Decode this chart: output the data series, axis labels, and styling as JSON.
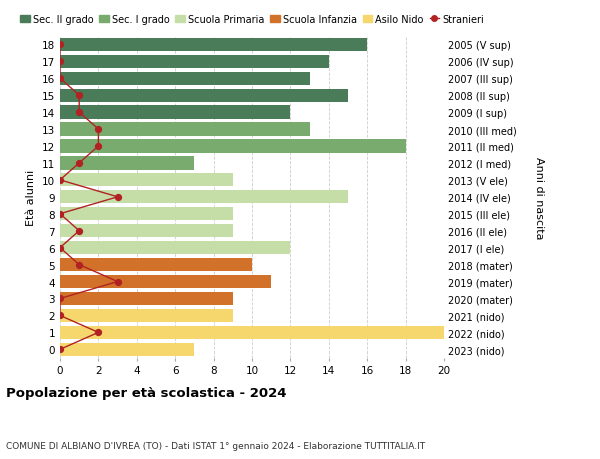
{
  "ages": [
    18,
    17,
    16,
    15,
    14,
    13,
    12,
    11,
    10,
    9,
    8,
    7,
    6,
    5,
    4,
    3,
    2,
    1,
    0
  ],
  "right_labels": [
    "2005 (V sup)",
    "2006 (IV sup)",
    "2007 (III sup)",
    "2008 (II sup)",
    "2009 (I sup)",
    "2010 (III med)",
    "2011 (II med)",
    "2012 (I med)",
    "2013 (V ele)",
    "2014 (IV ele)",
    "2015 (III ele)",
    "2016 (II ele)",
    "2017 (I ele)",
    "2018 (mater)",
    "2019 (mater)",
    "2020 (mater)",
    "2021 (nido)",
    "2022 (nido)",
    "2023 (nido)"
  ],
  "bar_values": [
    16,
    14,
    13,
    15,
    12,
    13,
    18,
    7,
    9,
    15,
    9,
    9,
    12,
    10,
    11,
    9,
    9,
    20,
    7
  ],
  "bar_colors": [
    "#4a7c59",
    "#4a7c59",
    "#4a7c59",
    "#4a7c59",
    "#4a7c59",
    "#7aab6e",
    "#7aab6e",
    "#7aab6e",
    "#c5dea8",
    "#c5dea8",
    "#c5dea8",
    "#c5dea8",
    "#c5dea8",
    "#d2722a",
    "#d2722a",
    "#d2722a",
    "#f5d76e",
    "#f5d76e",
    "#f5d76e"
  ],
  "stranieri_values": [
    0,
    0,
    0,
    1,
    1,
    2,
    2,
    1,
    0,
    3,
    0,
    1,
    0,
    1,
    3,
    0,
    0,
    2,
    0
  ],
  "stranieri_color": "#b22222",
  "legend_labels": [
    "Sec. II grado",
    "Sec. I grado",
    "Scuola Primaria",
    "Scuola Infanzia",
    "Asilo Nido",
    "Stranieri"
  ],
  "legend_colors": [
    "#4a7c59",
    "#7aab6e",
    "#c5dea8",
    "#d2722a",
    "#f5d76e",
    "#b22222"
  ],
  "title1": "Popolazione per età scolastica - 2024",
  "title2": "COMUNE DI ALBIANO D'IVREA (TO) - Dati ISTAT 1° gennaio 2024 - Elaborazione TUTTITALIA.IT",
  "ylabel_left": "Età alunni",
  "ylabel_right": "Anni di nascita",
  "xlim": [
    0,
    20
  ],
  "background_color": "#ffffff"
}
